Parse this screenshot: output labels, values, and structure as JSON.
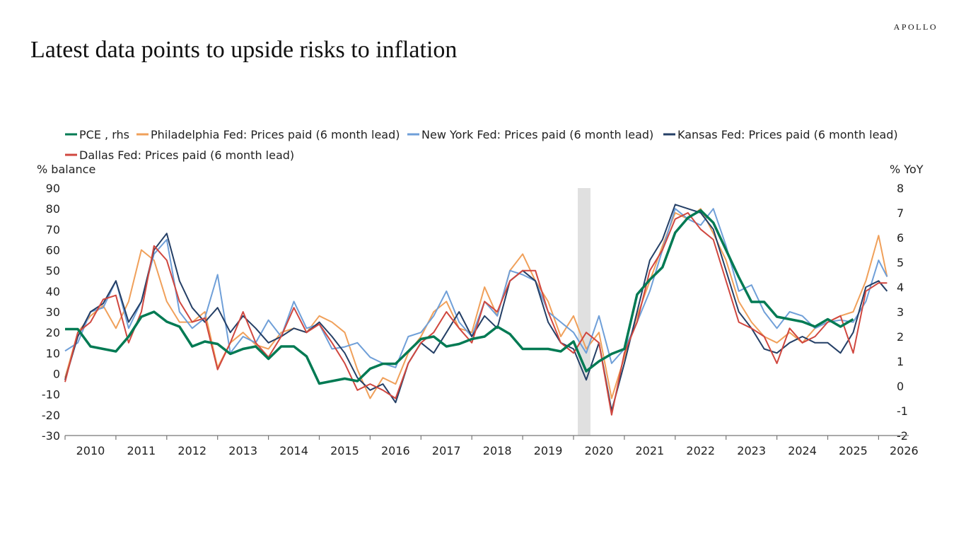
{
  "header": {
    "logo": "APOLLO",
    "title": "Latest data points to upside risks to inflation"
  },
  "chart_data": {
    "type": "line",
    "title": "Latest data points to upside risks to inflation",
    "ylabel_left": "% balance",
    "ylabel_right": "% YoY",
    "ylim_left": [
      -30,
      90
    ],
    "ylim_right": [
      -2,
      8
    ],
    "yticks_left": [
      90,
      80,
      70,
      60,
      50,
      40,
      30,
      20,
      10,
      0,
      -10,
      -20,
      -30
    ],
    "yticks_right": [
      8,
      7,
      6,
      5,
      4,
      3,
      2,
      1,
      0,
      -1,
      -2
    ],
    "xticks": [
      "2010",
      "2011",
      "2012",
      "2013",
      "2014",
      "2015",
      "2016",
      "2017",
      "2018",
      "2019",
      "2020",
      "2021",
      "2022",
      "2023",
      "2024",
      "2025",
      "2026"
    ],
    "grid": false,
    "legend_position": "top",
    "recession_shading": {
      "start": "2020-02",
      "end": "2020-04",
      "color": "#e0e0e0"
    },
    "x": [
      "2010-01",
      "2010-04",
      "2010-07",
      "2010-10",
      "2011-01",
      "2011-04",
      "2011-07",
      "2011-10",
      "2012-01",
      "2012-04",
      "2012-07",
      "2012-10",
      "2013-01",
      "2013-04",
      "2013-07",
      "2013-10",
      "2014-01",
      "2014-04",
      "2014-07",
      "2014-10",
      "2015-01",
      "2015-04",
      "2015-07",
      "2015-10",
      "2016-01",
      "2016-04",
      "2016-07",
      "2016-10",
      "2017-01",
      "2017-04",
      "2017-07",
      "2017-10",
      "2018-01",
      "2018-04",
      "2018-07",
      "2018-10",
      "2019-01",
      "2019-04",
      "2019-07",
      "2019-10",
      "2020-01",
      "2020-04",
      "2020-07",
      "2020-10",
      "2021-01",
      "2021-04",
      "2021-07",
      "2021-10",
      "2022-01",
      "2022-04",
      "2022-07",
      "2022-10",
      "2023-01",
      "2023-04",
      "2023-07",
      "2023-10",
      "2024-01",
      "2024-04",
      "2024-07",
      "2024-10",
      "2025-01",
      "2025-04",
      "2025-07",
      "2025-10",
      "2026-01",
      "2026-03"
    ],
    "series": [
      {
        "name": "PCE , rhs",
        "axis": "right",
        "color": "#007a53",
        "values": [
          2.3,
          2.3,
          1.6,
          1.5,
          1.4,
          2.0,
          2.8,
          3.0,
          2.6,
          2.4,
          1.6,
          1.8,
          1.7,
          1.3,
          1.5,
          1.6,
          1.1,
          1.6,
          1.6,
          1.2,
          0.1,
          0.2,
          0.3,
          0.2,
          0.7,
          0.9,
          0.9,
          1.4,
          1.9,
          2.0,
          1.6,
          1.7,
          1.9,
          2.0,
          2.4,
          2.1,
          1.5,
          1.5,
          1.5,
          1.4,
          1.8,
          0.6,
          1.0,
          1.3,
          1.5,
          3.7,
          4.3,
          4.8,
          6.2,
          6.8,
          7.1,
          6.6,
          5.5,
          4.4,
          3.4,
          3.4,
          2.8,
          2.7,
          2.6,
          2.4,
          2.7,
          2.4,
          2.7,
          null,
          null,
          null
        ]
      },
      {
        "name": "Philadelphia Fed: Prices paid (6 month lead)",
        "axis": "left",
        "color": "#f0a05a",
        "values": [
          -2,
          20,
          28,
          33,
          22,
          35,
          60,
          55,
          35,
          25,
          25,
          30,
          3,
          15,
          20,
          14,
          12,
          20,
          22,
          20,
          28,
          25,
          20,
          2,
          -12,
          -2,
          -5,
          10,
          18,
          30,
          35,
          22,
          20,
          42,
          28,
          50,
          58,
          45,
          35,
          18,
          28,
          12,
          20,
          -12,
          8,
          28,
          45,
          62,
          78,
          75,
          80,
          68,
          55,
          35,
          25,
          18,
          15,
          20,
          15,
          22,
          25,
          28,
          30,
          45,
          67,
          47
        ]
      },
      {
        "name": "New York Fed: Prices paid (6 month lead)",
        "axis": "left",
        "color": "#6f9fd8",
        "values": [
          11,
          15,
          30,
          32,
          45,
          22,
          35,
          58,
          65,
          30,
          22,
          27,
          48,
          10,
          18,
          15,
          26,
          18,
          35,
          22,
          24,
          12,
          13,
          15,
          8,
          5,
          3,
          18,
          20,
          28,
          40,
          25,
          18,
          35,
          28,
          50,
          48,
          45,
          30,
          25,
          20,
          10,
          28,
          5,
          12,
          25,
          40,
          60,
          80,
          75,
          72,
          80,
          62,
          40,
          43,
          30,
          22,
          30,
          28,
          22,
          25,
          26,
          25,
          35,
          55,
          47
        ]
      },
      {
        "name": "Kansas Fed: Prices paid (6 month lead)",
        "axis": "left",
        "color": "#243f66",
        "values": [
          -3,
          18,
          30,
          34,
          45,
          25,
          35,
          60,
          68,
          45,
          32,
          25,
          32,
          20,
          28,
          22,
          15,
          18,
          22,
          20,
          25,
          18,
          10,
          -2,
          -8,
          -5,
          -14,
          5,
          15,
          10,
          20,
          30,
          18,
          28,
          22,
          45,
          50,
          45,
          25,
          15,
          12,
          -3,
          15,
          -18,
          5,
          30,
          55,
          65,
          82,
          80,
          78,
          70,
          50,
          30,
          22,
          12,
          10,
          15,
          18,
          15,
          15,
          10,
          20,
          42,
          45,
          40
        ]
      },
      {
        "name": "Dallas Fed: Prices paid (6 month lead)",
        "axis": "left",
        "color": "#d0473f",
        "values": [
          -4,
          20,
          25,
          36,
          38,
          15,
          30,
          62,
          55,
          35,
          25,
          27,
          2,
          15,
          30,
          15,
          8,
          18,
          32,
          20,
          24,
          15,
          5,
          -8,
          -5,
          -8,
          -12,
          5,
          15,
          20,
          30,
          22,
          15,
          35,
          30,
          45,
          50,
          50,
          30,
          15,
          10,
          20,
          15,
          -20,
          10,
          25,
          50,
          60,
          75,
          78,
          70,
          65,
          45,
          25,
          22,
          18,
          5,
          22,
          15,
          18,
          25,
          28,
          10,
          40,
          44,
          44
        ]
      }
    ]
  }
}
